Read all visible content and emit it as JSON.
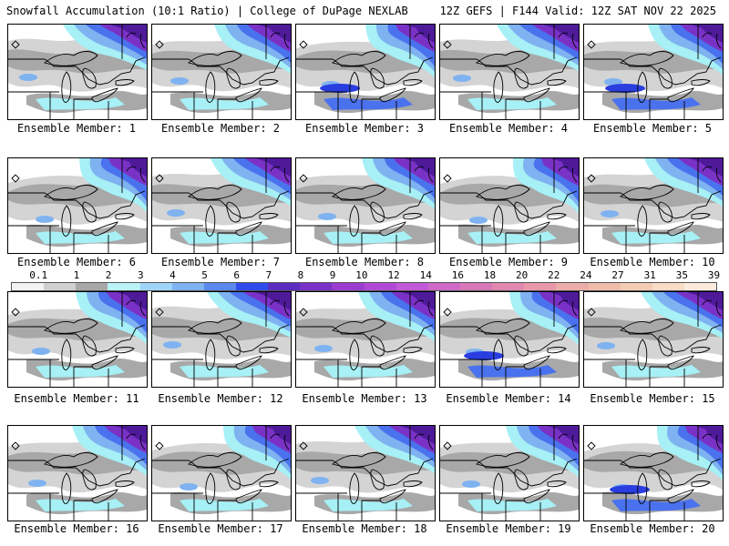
{
  "header": {
    "title": "Snowfall Accumulation (10:1 Ratio) | College of DuPage NEXLAB",
    "subtitle": "12Z GEFS | F144 Valid: 12Z SAT NOV 22 2025"
  },
  "colors": {
    "gray_light": "#d4d4d4",
    "gray_mid": "#a8a8a8",
    "gray_dark": "#8a8a8a",
    "cyan": "#a6f0f6",
    "blue_light": "#7fb2f0",
    "blue": "#4a72ee",
    "blue_dark": "#2a3ee0",
    "purple": "#7a32c6",
    "purple_dark": "#4e1a9a"
  },
  "colorbar": {
    "labels": [
      "0.1",
      "1",
      "2",
      "3",
      "4",
      "5",
      "6",
      "7",
      "8",
      "9",
      "10",
      "12",
      "14",
      "16",
      "18",
      "20",
      "22",
      "24",
      "27",
      "31",
      "35",
      "39"
    ],
    "colors": [
      "#f2f2f2",
      "#d0d0d0",
      "#a8a8a8",
      "#b9f2f7",
      "#9ed4f8",
      "#7fb2f0",
      "#5a88ec",
      "#2f4bec",
      "#5a2ec0",
      "#7a32c6",
      "#9a3cd0",
      "#b04ad6",
      "#c05ad6",
      "#d06ac8",
      "#d878b8",
      "#e088b0",
      "#e898a8",
      "#ecaca8",
      "#f0bcaa",
      "#f4ccb4",
      "#f8dcc6",
      "#fceadc"
    ]
  },
  "members": [
    {
      "label": "Ensemble Member: 1"
    },
    {
      "label": "Ensemble Member: 2"
    },
    {
      "label": "Ensemble Member: 3"
    },
    {
      "label": "Ensemble Member: 4"
    },
    {
      "label": "Ensemble Member: 5"
    },
    {
      "label": "Ensemble Member: 6"
    },
    {
      "label": "Ensemble Member: 7"
    },
    {
      "label": "Ensemble Member: 8"
    },
    {
      "label": "Ensemble Member: 9"
    },
    {
      "label": "Ensemble Member: 10"
    },
    {
      "label": "Ensemble Member: 11"
    },
    {
      "label": "Ensemble Member: 12"
    },
    {
      "label": "Ensemble Member: 13"
    },
    {
      "label": "Ensemble Member: 14"
    },
    {
      "label": "Ensemble Member: 15"
    },
    {
      "label": "Ensemble Member: 16"
    },
    {
      "label": "Ensemble Member: 17"
    },
    {
      "label": "Ensemble Member: 18"
    },
    {
      "label": "Ensemble Member: 19"
    },
    {
      "label": "Ensemble Member: 20"
    }
  ]
}
